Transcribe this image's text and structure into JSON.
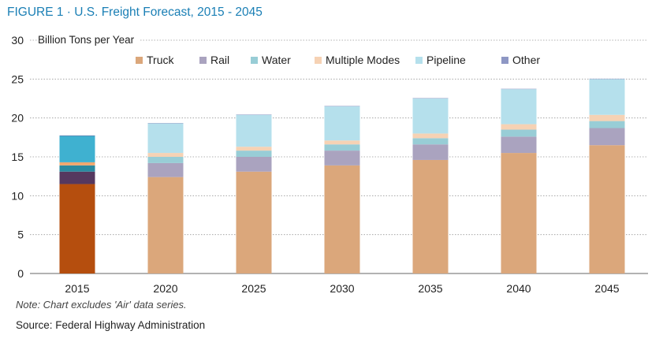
{
  "title": "FIGURE 1 · U.S. Freight Forecast, 2015 - 2045",
  "note": "Note: Chart excludes 'Air' data series.",
  "source": "Source: Federal Highway Administration",
  "chart_data": {
    "type": "bar",
    "stacked": true,
    "ylabel": "Billion Tons per Year",
    "ylim": [
      0,
      30
    ],
    "yticks": [
      0,
      5,
      10,
      15,
      20,
      25,
      30
    ],
    "grid": "horizontal dotted",
    "legend_position": "top",
    "categories": [
      "2015",
      "2020",
      "2025",
      "2030",
      "2035",
      "2040",
      "2045"
    ],
    "series": [
      {
        "name": "Truck",
        "color": "#dba77b",
        "highlight_color": "#b54e0e",
        "values": [
          11.5,
          12.4,
          13.1,
          13.9,
          14.6,
          15.5,
          16.5
        ]
      },
      {
        "name": "Rail",
        "color": "#aaa3bf",
        "highlight_color": "#55385f",
        "values": [
          1.6,
          1.8,
          1.9,
          1.9,
          2.0,
          2.1,
          2.2
        ]
      },
      {
        "name": "Water",
        "color": "#98cdd6",
        "highlight_color": "#2a8aa0",
        "values": [
          0.8,
          0.8,
          0.8,
          0.8,
          0.8,
          0.9,
          0.9
        ]
      },
      {
        "name": "Multiple Modes",
        "color": "#f6d2b4",
        "highlight_color": "#f0a76e",
        "values": [
          0.4,
          0.5,
          0.5,
          0.5,
          0.6,
          0.7,
          0.8
        ]
      },
      {
        "name": "Pipeline",
        "color": "#b5e0ec",
        "highlight_color": "#3fb1d0",
        "values": [
          3.4,
          3.8,
          4.1,
          4.4,
          4.5,
          4.5,
          4.6
        ]
      },
      {
        "name": "Other",
        "color": "#8e97c4",
        "highlight_color": "#404a8a",
        "values": [
          0.05,
          0.05,
          0.05,
          0.05,
          0.05,
          0.05,
          0.05
        ]
      }
    ],
    "highlighted_category": "2015"
  }
}
